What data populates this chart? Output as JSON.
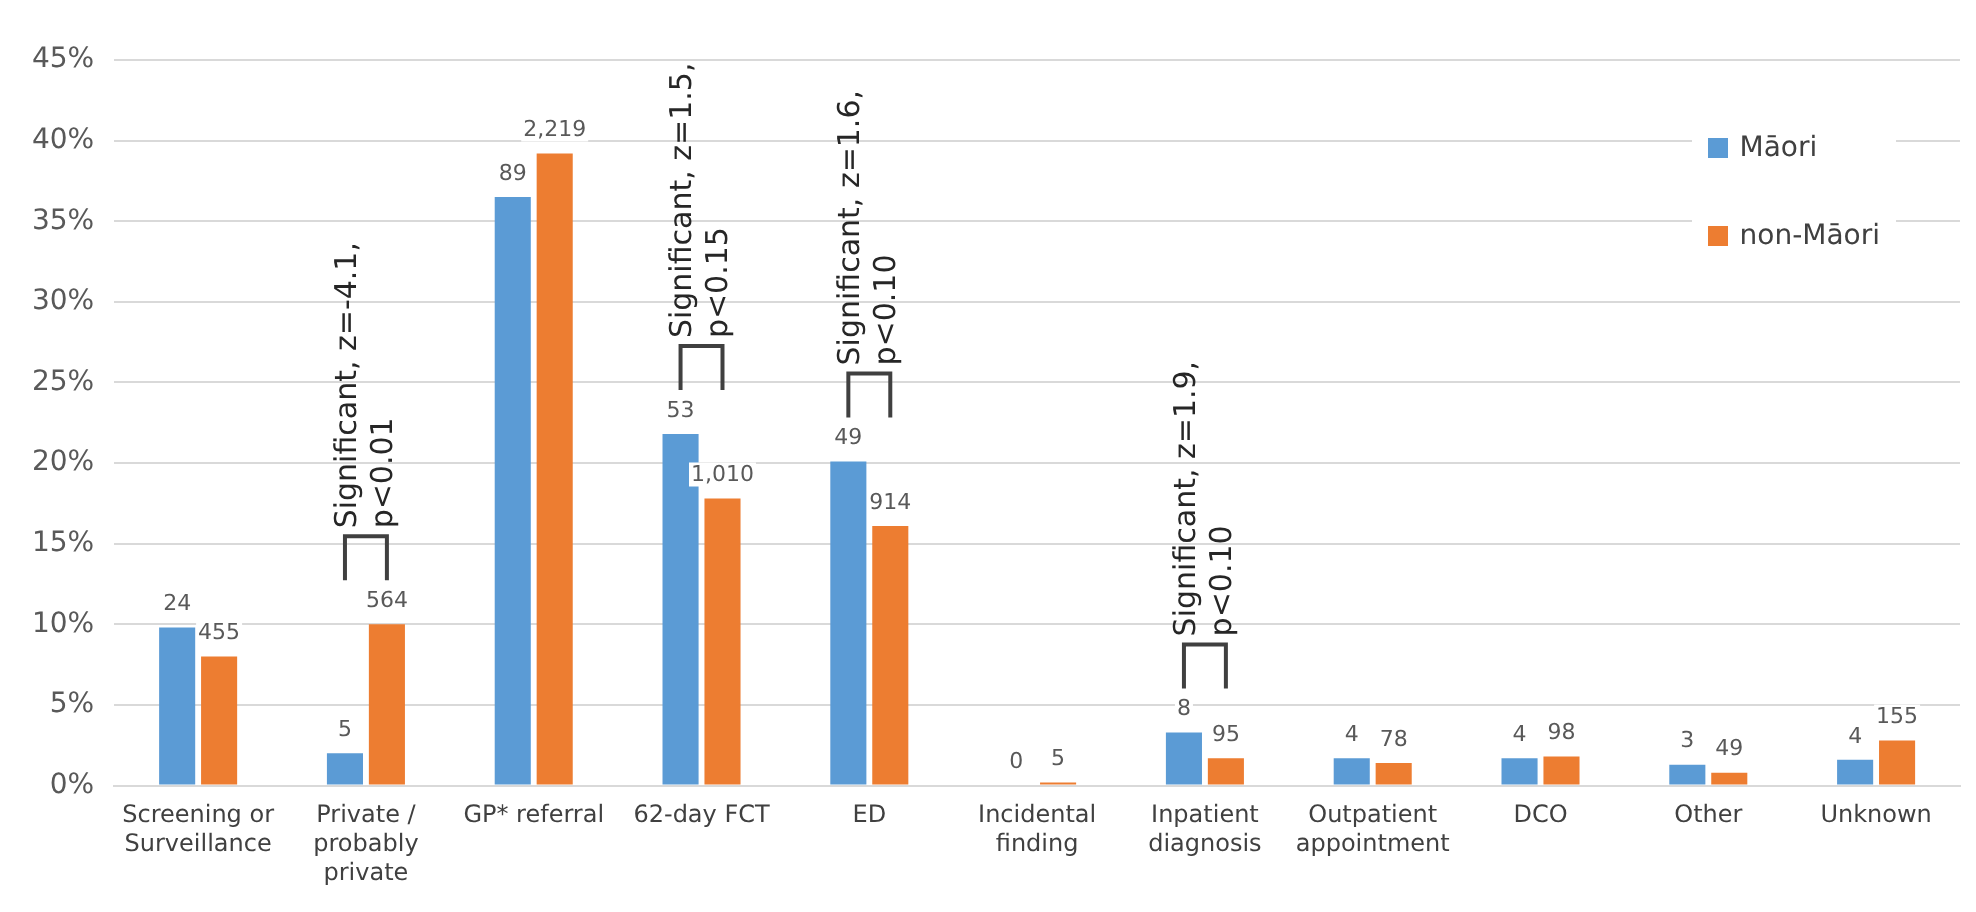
{
  "chart_data": {
    "type": "bar",
    "categories": [
      "Screening or Surveillance",
      "Private / probably private",
      "GP* referral",
      "62-day FCT",
      "ED",
      "Incidental finding",
      "Inpatient diagnosis",
      "Outpatient appointment",
      "DCO",
      "Other",
      "Unknown"
    ],
    "series": [
      {
        "name": "Māori",
        "color": "#5b9bd5",
        "values": [
          9.8,
          2.0,
          36.5,
          21.8,
          20.1,
          0,
          3.3,
          1.7,
          1.7,
          1.3,
          1.6
        ]
      },
      {
        "name": "non-Māori",
        "color": "#ed7d31",
        "values": [
          8.0,
          10.0,
          39.2,
          17.8,
          16.1,
          0.2,
          1.7,
          1.4,
          1.8,
          0.8,
          2.8
        ]
      }
    ],
    "ylim": [
      0,
      45
    ],
    "yticks": [
      {
        "value": 0,
        "label": "0%"
      },
      {
        "value": 5,
        "label": "5%"
      },
      {
        "value": 10,
        "label": "10%"
      },
      {
        "value": 15,
        "label": "15%"
      },
      {
        "value": 20,
        "label": "20%"
      },
      {
        "value": 25,
        "label": "25%"
      },
      {
        "value": 30,
        "label": "30%"
      },
      {
        "value": 35,
        "label": "35%"
      },
      {
        "value": 40,
        "label": "40%"
      },
      {
        "value": 45,
        "label": "45%"
      }
    ],
    "grid": "y",
    "legend": "top right",
    "annotations": [
      "Significant, z=-4.1, p<0.01",
      "Significant, z=1.5, p<0.15",
      "Significant, z=1.6, p<0.10",
      "Significant, z=1.9, p<0.10",
      {
        "text": "24",
        "x": "Screening or Surveillance",
        "y": 9.8
      },
      {
        "text": "455",
        "x": "Screening or Surveillance",
        "y": 8.0
      },
      {
        "text": "5",
        "x": "Private / probably private",
        "y": 2.0
      },
      {
        "text": "564",
        "x": "Private / probably private",
        "y": 10.0
      },
      {
        "text": "89",
        "x": "GP* referral",
        "y": 36.5
      },
      {
        "text": "2,219",
        "x": "GP* referral",
        "y": 39.2
      },
      {
        "text": "53",
        "x": "62-day FCT",
        "y": 21.8
      },
      {
        "text": "1,010",
        "x": "62-day FCT",
        "y": 17.8
      },
      {
        "text": "49",
        "x": "ED",
        "y": 20.1
      },
      {
        "text": "914",
        "x": "ED",
        "y": 16.1
      },
      {
        "text": "0",
        "x": "Incidental finding",
        "y": 0
      },
      {
        "text": "5",
        "x": "Incidental finding",
        "y": 0.2
      },
      {
        "text": "8",
        "x": "Inpatient diagnosis",
        "y": 3.3
      },
      {
        "text": "95",
        "x": "Inpatient diagnosis",
        "y": 1.7
      },
      {
        "text": "4",
        "x": "Outpatient appointment",
        "y": 1.7
      },
      {
        "text": "78",
        "x": "Outpatient appointment",
        "y": 1.4
      },
      {
        "text": "4",
        "x": "DCO",
        "y": 1.7
      },
      {
        "text": "98",
        "x": "DCO",
        "y": 1.8
      },
      {
        "text": "3",
        "x": "Other",
        "y": 1.3
      },
      {
        "text": "49",
        "x": "Other",
        "y": 0.8
      },
      {
        "text": "4",
        "x": "Unknown",
        "y": 1.6
      },
      {
        "text": "155",
        "x": "Unknown",
        "y": 2.8
      }
    ]
  }
}
